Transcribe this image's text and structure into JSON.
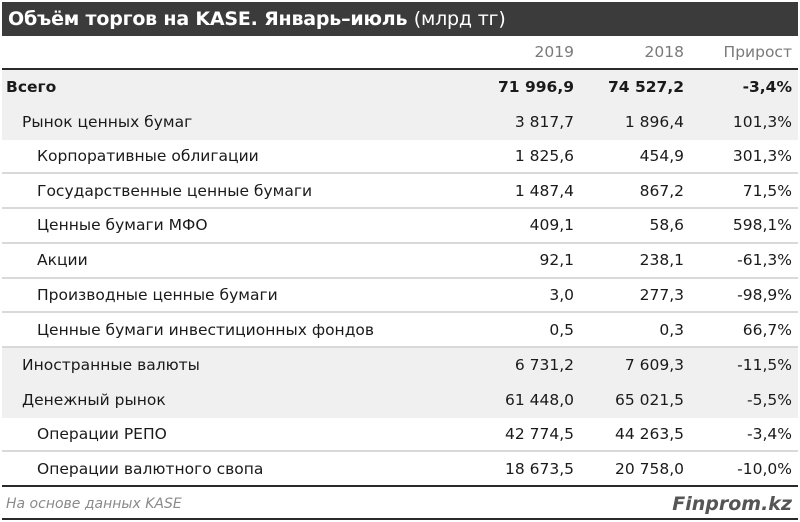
{
  "title": {
    "main": "Объём торгов на KASE. Январь–июль",
    "unit": "(млрд тг)"
  },
  "header": {
    "col_label": "",
    "col_2019": "2019",
    "col_2018": "2018",
    "col_growth": "Прирост"
  },
  "rows": [
    {
      "label": "Всего",
      "v2019": "71 996,9",
      "v2018": "74 527,2",
      "growth": "-3,4%"
    },
    {
      "label": "Рынок ценных бумаг",
      "v2019": "3 817,7",
      "v2018": "1 896,4",
      "growth": "101,3%"
    },
    {
      "label": "Корпоративные облигации",
      "v2019": "1 825,6",
      "v2018": "454,9",
      "growth": "301,3%"
    },
    {
      "label": "Государственные ценные бумаги",
      "v2019": "1 487,4",
      "v2018": "867,2",
      "growth": "71,5%"
    },
    {
      "label": "Ценные бумаги МФО",
      "v2019": "409,1",
      "v2018": "58,6",
      "growth": "598,1%"
    },
    {
      "label": "Акции",
      "v2019": "92,1",
      "v2018": "238,1",
      "growth": "-61,3%"
    },
    {
      "label": "Производные ценные бумаги",
      "v2019": "3,0",
      "v2018": "277,3",
      "growth": "-98,9%"
    },
    {
      "label": "Ценные бумаги инвестиционных фондов",
      "v2019": "0,5",
      "v2018": "0,3",
      "growth": "66,7%"
    },
    {
      "label": "Иностранные валюты",
      "v2019": "6 731,2",
      "v2018": "7 609,3",
      "growth": "-11,5%"
    },
    {
      "label": "Денежный рынок",
      "v2019": "61 448,0",
      "v2018": "65 021,5",
      "growth": "-5,5%"
    },
    {
      "label": "Операции РЕПО",
      "v2019": "42 774,5",
      "v2018": "44 263,5",
      "growth": "-3,4%"
    },
    {
      "label": "Операции валютного свопа",
      "v2019": "18 673,5",
      "v2018": "20 758,0",
      "growth": "-10,0%"
    }
  ],
  "footer": {
    "source": "На основе данных KASE",
    "brand": "Finprom.kz"
  },
  "colors": {
    "title_bg": "#3b3b3b",
    "shaded_row_bg": "#f0f0f0",
    "header_text": "#7a7a7a",
    "divider_dark": "#2a2a2a",
    "divider_light": "#d9d9d9"
  }
}
